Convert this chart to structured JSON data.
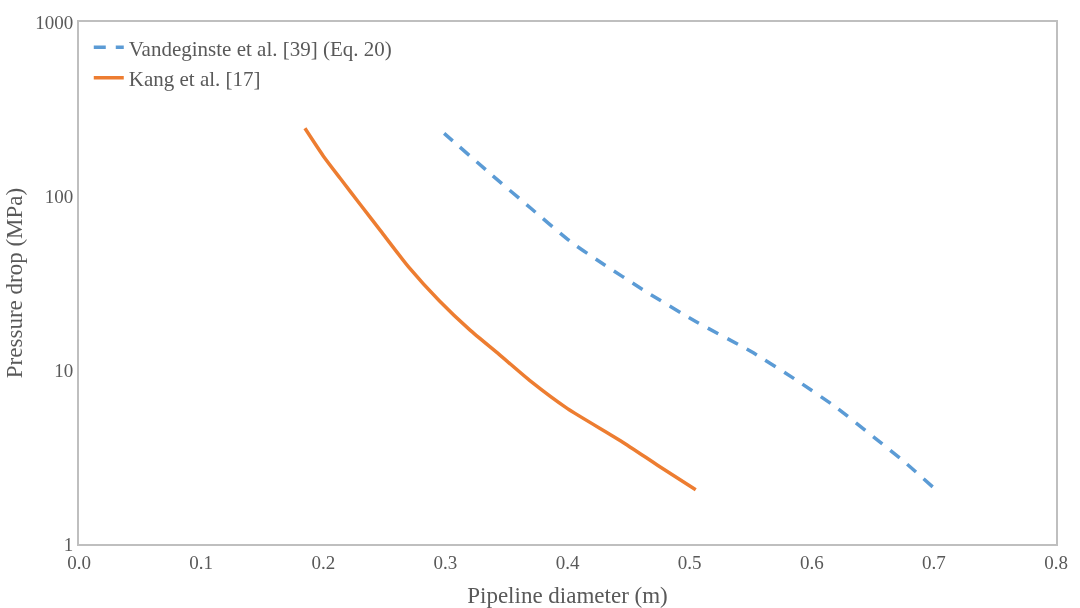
{
  "chart_data": {
    "type": "line",
    "xlabel": "Pipeline diameter (m)",
    "ylabel": "Pressure drop (MPa)",
    "log": "y",
    "grid": false,
    "legend": "top left",
    "marker": "none",
    "xlim": [
      0,
      0.8
    ],
    "xticks": [
      {
        "value": 0,
        "label": "0.0"
      },
      0.1,
      0.2,
      0.3,
      0.4,
      0.5,
      0.6,
      0.7,
      0.8
    ],
    "ylim": [
      1,
      1000
    ],
    "yticks": [
      1,
      10,
      100,
      1000
    ],
    "series": [
      {
        "name": "Vandeginste et al. [39] (Eq. 20)",
        "color": "#5b9bd5",
        "line_style": "dashed",
        "x": [
          0.299,
          0.337,
          0.37,
          0.402,
          0.424,
          0.465,
          0.505,
          0.55,
          0.589,
          0.62,
          0.651,
          0.675,
          0.699
        ],
        "values": [
          229,
          134,
          85,
          55,
          43,
          28,
          19,
          12.8,
          8.6,
          6.1,
          4.1,
          3,
          2.13
        ]
      },
      {
        "name": "Kang et al. [17]",
        "color": "#ed7d31",
        "line_style": "solid",
        "x": [
          0.185,
          0.2,
          0.214,
          0.23,
          0.247,
          0.27,
          0.295,
          0.32,
          0.344,
          0.37,
          0.4,
          0.444,
          0.475,
          0.505
        ],
        "values": [
          245,
          170,
          126,
          90,
          63,
          39,
          25,
          17,
          12.3,
          8.6,
          6,
          3.9,
          2.8,
          2.05
        ]
      }
    ]
  }
}
